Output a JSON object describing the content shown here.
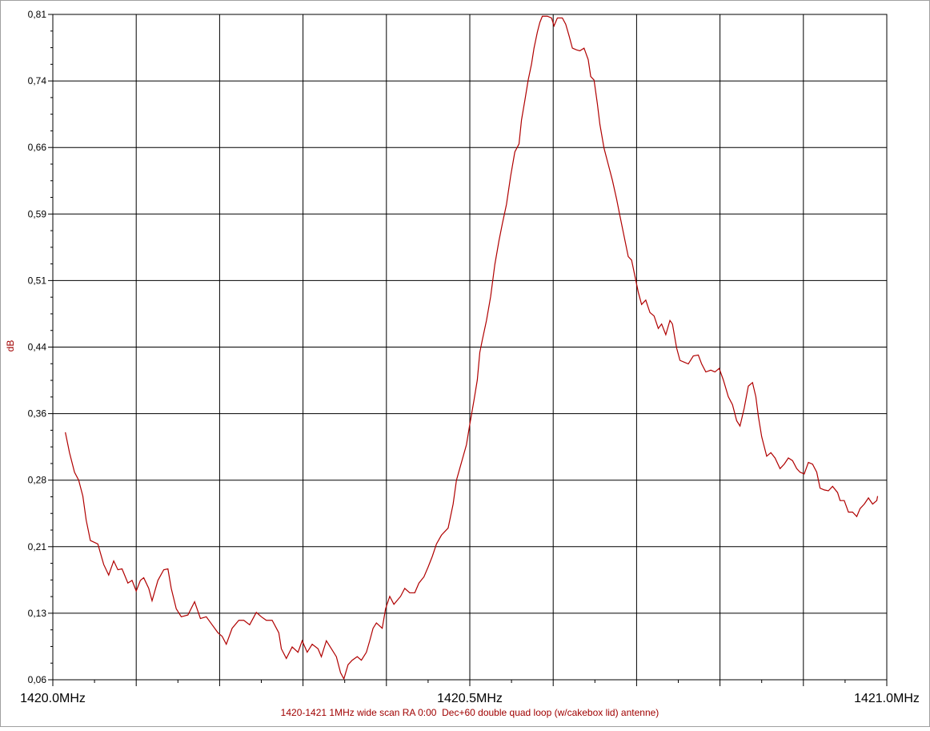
{
  "chart_data": {
    "type": "line",
    "title": "1420-1421 1MHz wide scan RA 0:00  Dec+60 double quad loop (w/cakebox lid) antenne)",
    "y_label": "dB",
    "xlim": [
      1420.0,
      1421.0
    ],
    "ylim": [
      0.06,
      0.81
    ],
    "xticks": [
      {
        "value": 1420.0,
        "label": "1420.0MHz"
      },
      {
        "value": 1420.1,
        "label": null
      },
      {
        "value": 1420.2,
        "label": null
      },
      {
        "value": 1420.3,
        "label": null
      },
      {
        "value": 1420.4,
        "label": null
      },
      {
        "value": 1420.5,
        "label": "1420.5MHz"
      },
      {
        "value": 1420.6,
        "label": null
      },
      {
        "value": 1420.7,
        "label": null
      },
      {
        "value": 1420.8,
        "label": null
      },
      {
        "value": 1420.9,
        "label": null
      },
      {
        "value": 1421.0,
        "label": "1421.0MHz"
      }
    ],
    "yticks": [
      {
        "value": 0.06,
        "label": "0,06"
      },
      {
        "value": 0.135,
        "label": "0,13"
      },
      {
        "value": 0.21,
        "label": "0,21"
      },
      {
        "value": 0.285,
        "label": "0,28"
      },
      {
        "value": 0.36,
        "label": "0,36"
      },
      {
        "value": 0.435,
        "label": "0,44"
      },
      {
        "value": 0.51,
        "label": "0,51"
      },
      {
        "value": 0.585,
        "label": "0,59"
      },
      {
        "value": 0.66,
        "label": "0,66"
      },
      {
        "value": 0.735,
        "label": "0,74"
      },
      {
        "value": 0.81,
        "label": "0,81"
      }
    ],
    "grid": true,
    "color": "#b00000",
    "x": [
      1420.015,
      1420.02,
      1420.026,
      1420.031,
      1420.036,
      1420.04,
      1420.045,
      1420.054,
      1420.061,
      1420.067,
      1420.073,
      1420.078,
      1420.083,
      1420.09,
      1420.095,
      1420.1,
      1420.105,
      1420.109,
      1420.115,
      1420.119,
      1420.126,
      1420.133,
      1420.138,
      1420.142,
      1420.148,
      1420.154,
      1420.162,
      1420.17,
      1420.177,
      1420.184,
      1420.191,
      1420.198,
      1420.203,
      1420.208,
      1420.215,
      1420.223,
      1420.229,
      1420.236,
      1420.244,
      1420.25,
      1420.256,
      1420.263,
      1420.271,
      1420.274,
      1420.28,
      1420.287,
      1420.294,
      1420.299,
      1420.305,
      1420.311,
      1420.318,
      1420.322,
      1420.328,
      1420.334,
      1420.34,
      1420.345,
      1420.349,
      1420.354,
      1420.359,
      1420.365,
      1420.37,
      1420.376,
      1420.38,
      1420.384,
      1420.388,
      1420.395,
      1420.399,
      1420.404,
      1420.409,
      1420.417,
      1420.422,
      1420.428,
      1420.434,
      1420.439,
      1420.445,
      1420.45,
      1420.455,
      1420.46,
      1420.466,
      1420.474,
      1420.48,
      1420.484,
      1420.49,
      1420.496,
      1420.5,
      1420.505,
      1420.509,
      1420.512,
      1420.515,
      1420.52,
      1420.525,
      1420.53,
      1420.535,
      1420.539,
      1420.544,
      1420.549,
      1420.554,
      1420.559,
      1420.562,
      1420.566,
      1420.57,
      1420.574,
      1420.577,
      1420.581,
      1420.584,
      1420.587,
      1420.593,
      1420.598,
      1420.601,
      1420.605,
      1420.611,
      1420.615,
      1420.619,
      1420.623,
      1420.628,
      1420.632,
      1420.637,
      1420.642,
      1420.645,
      1420.649,
      1420.653,
      1420.656,
      1420.661,
      1420.666,
      1420.671,
      1420.676,
      1420.68,
      1420.685,
      1420.69,
      1420.694,
      1420.698,
      1420.702,
      1420.706,
      1420.711,
      1420.716,
      1420.721,
      1420.726,
      1420.73,
      1420.735,
      1420.74,
      1420.743,
      1420.748,
      1420.752,
      1420.757,
      1420.762,
      1420.768,
      1420.774,
      1420.778,
      1420.783,
      1420.789,
      1420.794,
      1420.799,
      1420.804,
      1420.81,
      1420.815,
      1420.82,
      1420.824,
      1420.829,
      1420.834,
      1420.839,
      1420.843,
      1420.846,
      1420.85,
      1420.856,
      1420.861,
      1420.866,
      1420.872,
      1420.877,
      1420.882,
      1420.887,
      1420.892,
      1420.896,
      1420.901,
      1420.906,
      1420.911,
      1420.916,
      1420.92,
      1420.925,
      1420.93,
      1420.935,
      1420.941,
      1420.944,
      1420.949,
      1420.954,
      1420.959,
      1420.964,
      1420.968,
      1420.973,
      1420.978,
      1420.983,
      1420.988,
      1420.989
    ],
    "series": [
      {
        "values": [
          0.339,
          0.316,
          0.294,
          0.285,
          0.267,
          0.24,
          0.217,
          0.213,
          0.19,
          0.178,
          0.194,
          0.184,
          0.185,
          0.169,
          0.172,
          0.16,
          0.172,
          0.175,
          0.163,
          0.149,
          0.172,
          0.184,
          0.185,
          0.163,
          0.14,
          0.131,
          0.133,
          0.148,
          0.129,
          0.131,
          0.122,
          0.113,
          0.109,
          0.1,
          0.118,
          0.127,
          0.127,
          0.122,
          0.136,
          0.131,
          0.127,
          0.127,
          0.113,
          0.095,
          0.084,
          0.097,
          0.091,
          0.104,
          0.091,
          0.1,
          0.095,
          0.086,
          0.104,
          0.095,
          0.086,
          0.068,
          0.061,
          0.077,
          0.082,
          0.086,
          0.082,
          0.091,
          0.104,
          0.118,
          0.124,
          0.118,
          0.14,
          0.154,
          0.145,
          0.154,
          0.163,
          0.158,
          0.158,
          0.169,
          0.176,
          0.187,
          0.199,
          0.213,
          0.223,
          0.231,
          0.258,
          0.285,
          0.305,
          0.325,
          0.348,
          0.375,
          0.398,
          0.429,
          0.443,
          0.465,
          0.492,
          0.528,
          0.555,
          0.574,
          0.596,
          0.628,
          0.655,
          0.664,
          0.691,
          0.713,
          0.736,
          0.754,
          0.772,
          0.79,
          0.801,
          0.808,
          0.808,
          0.806,
          0.797,
          0.806,
          0.806,
          0.799,
          0.786,
          0.772,
          0.77,
          0.769,
          0.772,
          0.759,
          0.74,
          0.736,
          0.709,
          0.686,
          0.659,
          0.641,
          0.623,
          0.602,
          0.583,
          0.56,
          0.537,
          0.533,
          0.515,
          0.497,
          0.483,
          0.488,
          0.474,
          0.47,
          0.456,
          0.461,
          0.449,
          0.465,
          0.461,
          0.434,
          0.42,
          0.418,
          0.416,
          0.425,
          0.426,
          0.416,
          0.407,
          0.409,
          0.407,
          0.411,
          0.398,
          0.379,
          0.37,
          0.352,
          0.346,
          0.366,
          0.391,
          0.395,
          0.379,
          0.357,
          0.334,
          0.312,
          0.316,
          0.31,
          0.298,
          0.303,
          0.31,
          0.307,
          0.298,
          0.294,
          0.292,
          0.305,
          0.303,
          0.294,
          0.276,
          0.274,
          0.273,
          0.278,
          0.271,
          0.262,
          0.262,
          0.249,
          0.249,
          0.244,
          0.253,
          0.258,
          0.265,
          0.258,
          0.262,
          0.267
        ]
      }
    ]
  }
}
